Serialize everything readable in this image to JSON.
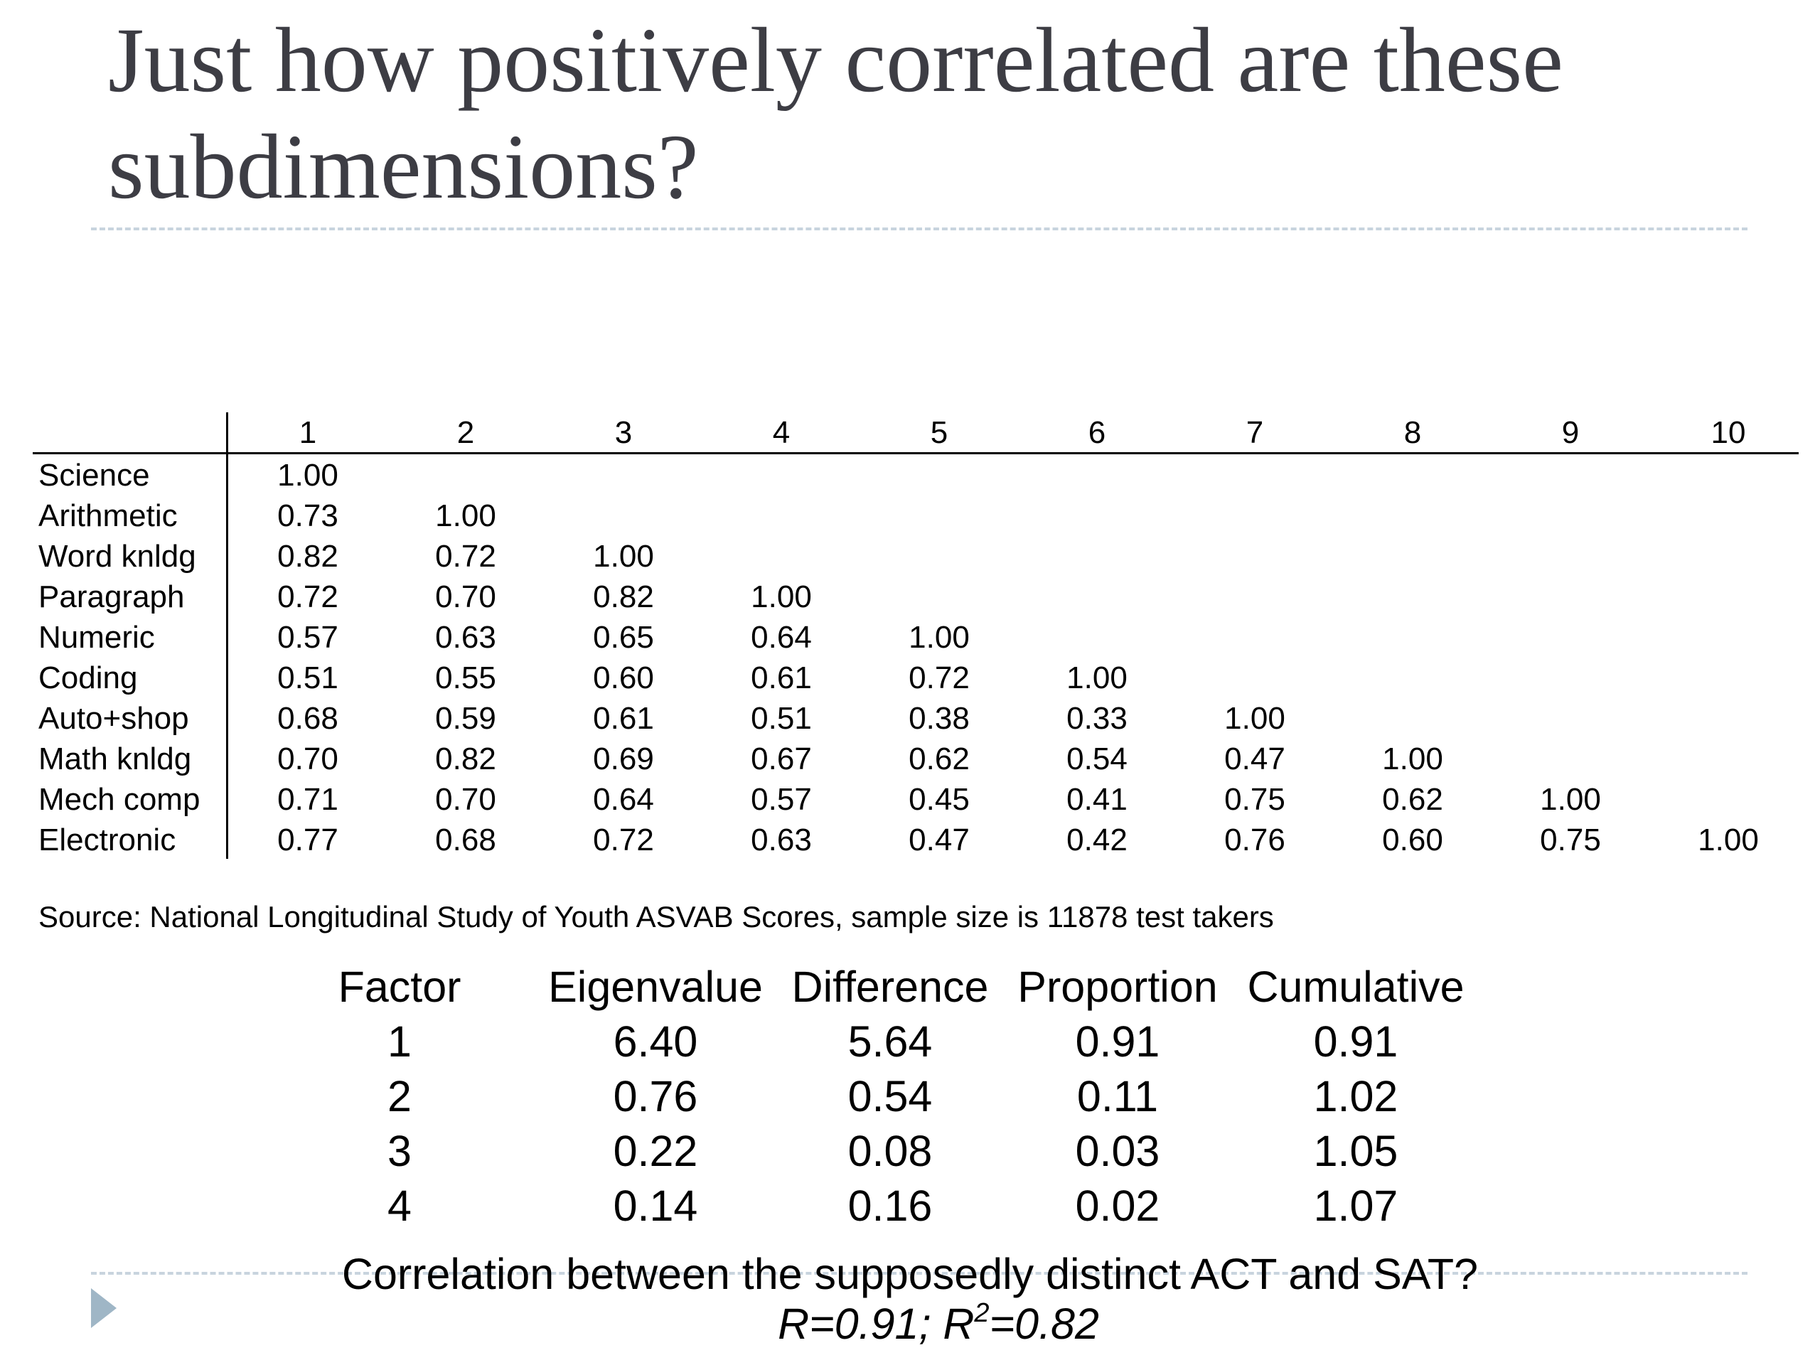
{
  "slide": {
    "title": "Just how positively correlated are these subdimensions?",
    "bullet_icon": "triangle-bullet-icon",
    "accent_color": "#9fb6c6"
  },
  "matrix": {
    "columns": [
      "1",
      "2",
      "3",
      "4",
      "5",
      "6",
      "7",
      "8",
      "9",
      "10"
    ],
    "rows": [
      {
        "label": "Science",
        "values": [
          "1.00"
        ]
      },
      {
        "label": "Arithmetic",
        "values": [
          "0.73",
          "1.00"
        ]
      },
      {
        "label": "Word knldg",
        "values": [
          "0.82",
          "0.72",
          "1.00"
        ]
      },
      {
        "label": "Paragraph",
        "values": [
          "0.72",
          "0.70",
          "0.82",
          "1.00"
        ]
      },
      {
        "label": "Numeric",
        "values": [
          "0.57",
          "0.63",
          "0.65",
          "0.64",
          "1.00"
        ]
      },
      {
        "label": "Coding",
        "values": [
          "0.51",
          "0.55",
          "0.60",
          "0.61",
          "0.72",
          "1.00"
        ]
      },
      {
        "label": "Auto+shop",
        "values": [
          "0.68",
          "0.59",
          "0.61",
          "0.51",
          "0.38",
          "0.33",
          "1.00"
        ]
      },
      {
        "label": "Math knldg",
        "values": [
          "0.70",
          "0.82",
          "0.69",
          "0.67",
          "0.62",
          "0.54",
          "0.47",
          "1.00"
        ]
      },
      {
        "label": "Mech comp",
        "values": [
          "0.71",
          "0.70",
          "0.64",
          "0.57",
          "0.45",
          "0.41",
          "0.75",
          "0.62",
          "1.00"
        ]
      },
      {
        "label": "Electronic",
        "values": [
          "0.77",
          "0.68",
          "0.72",
          "0.63",
          "0.47",
          "0.42",
          "0.76",
          "0.60",
          "0.75",
          "1.00"
        ]
      }
    ],
    "source": "Source: National Longitudinal Study of Youth ASVAB Scores, sample size is 11878 test takers"
  },
  "factor_table": {
    "headers": [
      "Factor",
      "Eigenvalue",
      "Difference",
      "Proportion",
      "Cumulative"
    ],
    "rows": [
      [
        "1",
        "6.40",
        "5.64",
        "0.91",
        "0.91"
      ],
      [
        "2",
        "0.76",
        "0.54",
        "0.11",
        "1.02"
      ],
      [
        "3",
        "0.22",
        "0.08",
        "0.03",
        "1.05"
      ],
      [
        "4",
        "0.14",
        "0.16",
        "0.02",
        "1.07"
      ]
    ]
  },
  "footer": {
    "question": "Correlation between the supposedly distinct ACT and SAT?",
    "answer_r": "R=0.91; R",
    "answer_sup": "2",
    "answer_r2": "=0.82"
  }
}
